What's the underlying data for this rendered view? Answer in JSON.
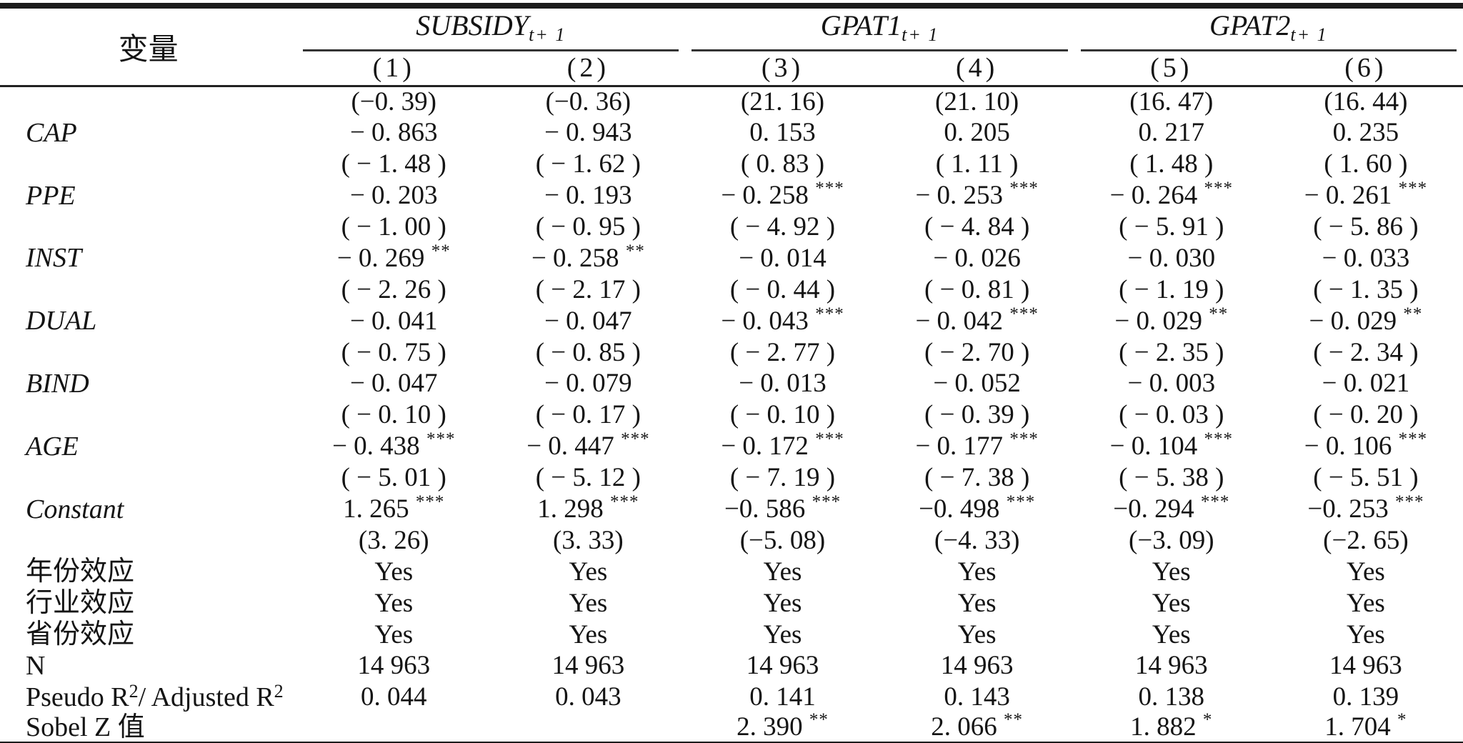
{
  "table": {
    "row_header": "变量",
    "groups": [
      {
        "name": "SUBSIDY",
        "sub": "t+ 1"
      },
      {
        "name": "GPAT1",
        "sub": "t+ 1"
      },
      {
        "name": "GPAT2",
        "sub": "t+ 1"
      }
    ],
    "col_labels": [
      "(1)",
      "(2)",
      "(3)",
      "(4)",
      "(5)",
      "(6)"
    ],
    "rows": [
      {
        "label": "",
        "italic": false,
        "cells": [
          "(−0. 39)",
          "(−0. 36)",
          "(21. 16)",
          "(21. 10)",
          "(16. 47)",
          "(16. 44)"
        ]
      },
      {
        "label": "CAP",
        "italic": true,
        "cells": [
          "− 0. 863",
          "− 0. 943",
          "0. 153",
          "0. 205",
          "0. 217",
          "0. 235"
        ]
      },
      {
        "label": "",
        "italic": false,
        "cells": [
          "( − 1. 48 )",
          "( − 1. 62 )",
          "( 0. 83 )",
          "( 1. 11 )",
          "( 1. 48 )",
          "( 1. 60 )"
        ]
      },
      {
        "label": "PPE",
        "italic": true,
        "cells": [
          "− 0. 203",
          "− 0. 193",
          "− 0. 258 ***",
          "− 0. 253 ***",
          "− 0. 264 ***",
          "− 0. 261 ***"
        ]
      },
      {
        "label": "",
        "italic": false,
        "cells": [
          "( − 1. 00 )",
          "( − 0. 95 )",
          "( − 4. 92 )",
          "( − 4. 84 )",
          "( − 5. 91 )",
          "( − 5. 86 )"
        ]
      },
      {
        "label": "INST",
        "italic": true,
        "cells": [
          "− 0. 269 **",
          "− 0. 258 **",
          "− 0. 014",
          "− 0. 026",
          "− 0. 030",
          "− 0. 033"
        ]
      },
      {
        "label": "",
        "italic": false,
        "cells": [
          "( − 2. 26 )",
          "( − 2. 17 )",
          "( − 0. 44 )",
          "( − 0. 81 )",
          "( − 1. 19 )",
          "( − 1. 35 )"
        ]
      },
      {
        "label": "DUAL",
        "italic": true,
        "cells": [
          "− 0. 041",
          "− 0. 047",
          "− 0. 043 ***",
          "− 0. 042 ***",
          "− 0. 029 **",
          "− 0. 029 **"
        ]
      },
      {
        "label": "",
        "italic": false,
        "cells": [
          "( − 0. 75 )",
          "( − 0. 85 )",
          "( − 2. 77 )",
          "( − 2. 70 )",
          "( − 2. 35 )",
          "( − 2. 34 )"
        ]
      },
      {
        "label": "BIND",
        "italic": true,
        "cells": [
          "− 0. 047",
          "− 0. 079",
          "− 0. 013",
          "− 0. 052",
          "− 0. 003",
          "− 0. 021"
        ]
      },
      {
        "label": "",
        "italic": false,
        "cells": [
          "( − 0. 10 )",
          "( − 0. 17 )",
          "( − 0. 10 )",
          "( − 0. 39 )",
          "( − 0. 03 )",
          "( − 0. 20 )"
        ]
      },
      {
        "label": "AGE",
        "italic": true,
        "cells": [
          "− 0. 438 ***",
          "− 0. 447 ***",
          "− 0. 172 ***",
          "− 0. 177 ***",
          "− 0. 104 ***",
          "− 0. 106 ***"
        ]
      },
      {
        "label": "",
        "italic": false,
        "cells": [
          "( − 5. 01 )",
          "( − 5. 12 )",
          "( − 7. 19 )",
          "( − 7. 38 )",
          "( − 5. 38 )",
          "( − 5. 51 )"
        ]
      },
      {
        "label": "Constant",
        "italic": true,
        "cells": [
          "1. 265 ***",
          "1. 298 ***",
          "−0. 586 ***",
          "−0. 498 ***",
          "−0. 294 ***",
          "−0. 253 ***"
        ]
      },
      {
        "label": "",
        "italic": false,
        "cells": [
          "(3. 26)",
          "(3. 33)",
          "(−5. 08)",
          "(−4. 33)",
          "(−3. 09)",
          "(−2. 65)"
        ]
      },
      {
        "label": "年份效应",
        "italic": false,
        "cells": [
          "Yes",
          "Yes",
          "Yes",
          "Yes",
          "Yes",
          "Yes"
        ]
      },
      {
        "label": "行业效应",
        "italic": false,
        "cells": [
          "Yes",
          "Yes",
          "Yes",
          "Yes",
          "Yes",
          "Yes"
        ]
      },
      {
        "label": "省份效应",
        "italic": false,
        "cells": [
          "Yes",
          "Yes",
          "Yes",
          "Yes",
          "Yes",
          "Yes"
        ]
      },
      {
        "label": "N",
        "italic": false,
        "cells": [
          "14 963",
          "14 963",
          "14 963",
          "14 963",
          "14 963",
          "14 963"
        ]
      },
      {
        "label": "Pseudo R²/ Adjusted R²",
        "italic": false,
        "cells": [
          "0. 044",
          "0. 043",
          "0. 141",
          "0. 143",
          "0. 138",
          "0. 139"
        ]
      },
      {
        "label": "Sobel Z 值",
        "italic": false,
        "cells": [
          "",
          "",
          "2. 390 **",
          "2. 066 **",
          "1. 882 *",
          "1. 704 *"
        ]
      }
    ]
  }
}
